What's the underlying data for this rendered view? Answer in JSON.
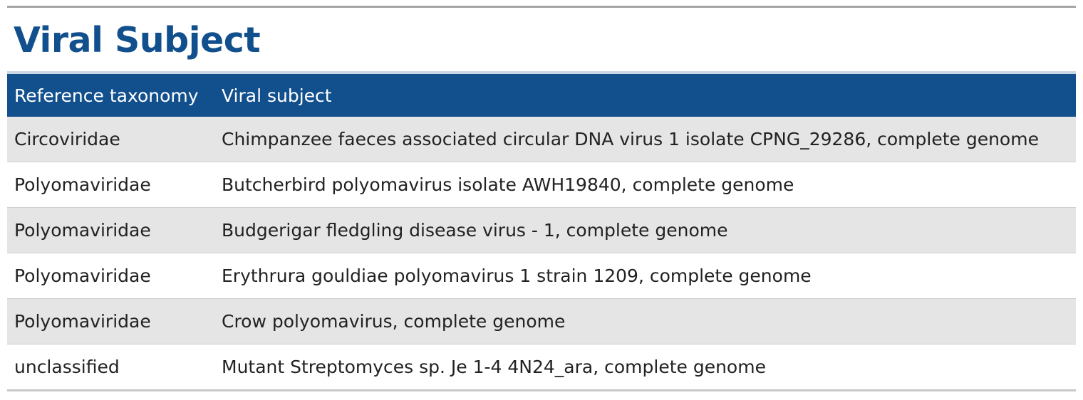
{
  "heading": "Viral Subject",
  "table": {
    "headers": [
      "Reference taxonomy",
      "Viral subject"
    ],
    "rows": [
      {
        "taxonomy": "Circoviridae",
        "subject": "Chimpanzee faeces associated circular DNA virus 1 isolate CPNG_29286, complete genome"
      },
      {
        "taxonomy": "Polyomaviridae",
        "subject": "Butcherbird polyomavirus isolate AWH19840, complete genome"
      },
      {
        "taxonomy": "Polyomaviridae",
        "subject": "Budgerigar fledgling disease virus - 1, complete genome"
      },
      {
        "taxonomy": "Polyomaviridae",
        "subject": "Erythrura gouldiae polyomavirus 1 strain 1209, complete genome"
      },
      {
        "taxonomy": "Polyomaviridae",
        "subject": "Crow polyomavirus, complete genome"
      },
      {
        "taxonomy": "unclassified",
        "subject": "Mutant Streptomyces sp. Je 1-4 4N24_ara, complete genome"
      }
    ]
  },
  "colors": {
    "heading": "#114f8d",
    "header_bg": "#114f8d",
    "row_alt_bg": "#e5e5e5"
  }
}
